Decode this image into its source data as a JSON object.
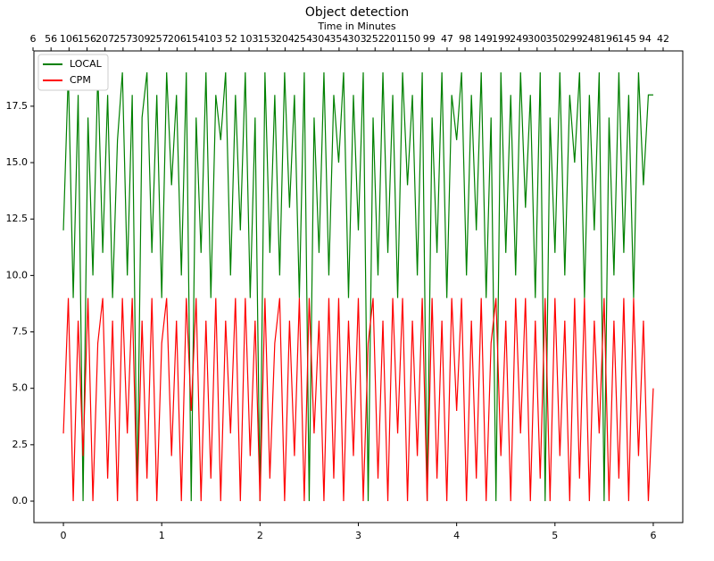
{
  "chart_data": {
    "type": "line",
    "title": "Object detection",
    "x2label": "Time in Minutes",
    "x2categories": [
      "6",
      "56",
      "106",
      "156",
      "207",
      "257",
      "309",
      "257",
      "206",
      "154",
      "103",
      "52",
      "103",
      "153",
      "204",
      "254",
      "304",
      "354",
      "303",
      "252",
      "201",
      "150",
      "99",
      "47",
      "98",
      "149",
      "199",
      "249",
      "300",
      "350",
      "299",
      "248",
      "196",
      "145",
      "94",
      "42"
    ],
    "x": [
      0,
      0.05,
      0.1,
      0.15,
      0.2,
      0.25,
      0.3,
      0.35,
      0.4,
      0.45,
      0.5,
      0.55,
      0.6,
      0.65,
      0.7,
      0.75,
      0.8,
      0.85,
      0.9,
      0.95,
      1,
      1.05,
      1.1,
      1.15,
      1.2,
      1.25,
      1.3,
      1.35,
      1.4,
      1.45,
      1.5,
      1.55,
      1.6,
      1.65,
      1.7,
      1.75,
      1.8,
      1.85,
      1.9,
      1.95,
      2,
      2.05,
      2.1,
      2.15,
      2.2,
      2.25,
      2.3,
      2.35,
      2.4,
      2.45,
      2.5,
      2.55,
      2.6,
      2.65,
      2.7,
      2.75,
      2.8,
      2.85,
      2.9,
      2.95,
      3,
      3.05,
      3.1,
      3.15,
      3.2,
      3.25,
      3.3,
      3.35,
      3.4,
      3.45,
      3.5,
      3.55,
      3.6,
      3.65,
      3.7,
      3.75,
      3.8,
      3.85,
      3.9,
      3.95,
      4,
      4.05,
      4.1,
      4.15,
      4.2,
      4.25,
      4.3,
      4.35,
      4.4,
      4.45,
      4.5,
      4.55,
      4.6,
      4.65,
      4.7,
      4.75,
      4.8,
      4.85,
      4.9,
      4.95,
      5,
      5.05,
      5.1,
      5.15,
      5.2,
      5.25,
      5.3,
      5.35,
      5.4,
      5.45,
      5.5,
      5.55,
      5.6,
      5.65,
      5.7,
      5.75,
      5.8,
      5.85,
      5.9,
      5.95,
      6
    ],
    "series": [
      {
        "name": "LOCAL",
        "color": "#008000",
        "values": [
          12,
          19,
          9,
          18,
          0,
          17,
          10,
          19,
          11,
          18,
          9,
          16,
          19,
          10,
          18,
          0,
          17,
          19,
          11,
          18,
          9,
          19,
          14,
          18,
          10,
          19,
          0,
          17,
          11,
          19,
          9,
          18,
          16,
          19,
          10,
          18,
          12,
          19,
          9,
          17,
          0,
          19,
          11,
          18,
          10,
          19,
          13,
          18,
          9,
          19,
          0,
          17,
          11,
          19,
          10,
          18,
          15,
          19,
          9,
          18,
          12,
          19,
          0,
          17,
          10,
          19,
          11,
          18,
          9,
          19,
          14,
          18,
          10,
          19,
          0,
          17,
          11,
          19,
          9,
          18,
          16,
          19,
          10,
          18,
          12,
          19,
          9,
          17,
          0,
          19,
          11,
          18,
          10,
          19,
          13,
          18,
          9,
          19,
          0,
          17,
          11,
          19,
          10,
          18,
          15,
          19,
          9,
          18,
          12,
          19,
          0,
          17,
          10,
          19,
          11,
          18,
          9,
          19,
          14,
          18,
          18
        ]
      },
      {
        "name": "CPM",
        "color": "#ff0000",
        "values": [
          3,
          9,
          0,
          8,
          2,
          9,
          0,
          7,
          9,
          1,
          8,
          0,
          9,
          3,
          9,
          0,
          8,
          1,
          9,
          0,
          7,
          9,
          2,
          8,
          0,
          9,
          4,
          9,
          0,
          8,
          1,
          9,
          0,
          8,
          3,
          9,
          0,
          9,
          2,
          8,
          0,
          9,
          1,
          7,
          9,
          0,
          8,
          2,
          9,
          0,
          9,
          3,
          8,
          0,
          9,
          1,
          9,
          0,
          8,
          2,
          9,
          0,
          7,
          9,
          1,
          8,
          0,
          9,
          3,
          9,
          0,
          8,
          2,
          9,
          0,
          9,
          1,
          8,
          0,
          9,
          4,
          9,
          0,
          8,
          1,
          9,
          0,
          7,
          9,
          2,
          8,
          0,
          9,
          3,
          9,
          0,
          8,
          1,
          9,
          0,
          9,
          2,
          8,
          0,
          9,
          1,
          9,
          0,
          8,
          3,
          9,
          0,
          8,
          1,
          9,
          0,
          9,
          2,
          8,
          0,
          5
        ]
      }
    ],
    "xlim": [
      -0.3,
      6.3
    ],
    "xticks": [
      0,
      1,
      2,
      3,
      4,
      5,
      6
    ],
    "ylim": [
      -0.95,
      19.95
    ],
    "yticks": [
      {
        "value": 0,
        "label": "0.0"
      },
      {
        "value": 2.5,
        "label": "2.5"
      },
      {
        "value": 5,
        "label": "5.0"
      },
      {
        "value": 7.5,
        "label": "7.5"
      },
      {
        "value": 10,
        "label": "10.0"
      },
      {
        "value": 12.5,
        "label": "12.5"
      },
      {
        "value": 15,
        "label": "15.0"
      },
      {
        "value": 17.5,
        "label": "17.5"
      }
    ],
    "legend": "upper left"
  }
}
